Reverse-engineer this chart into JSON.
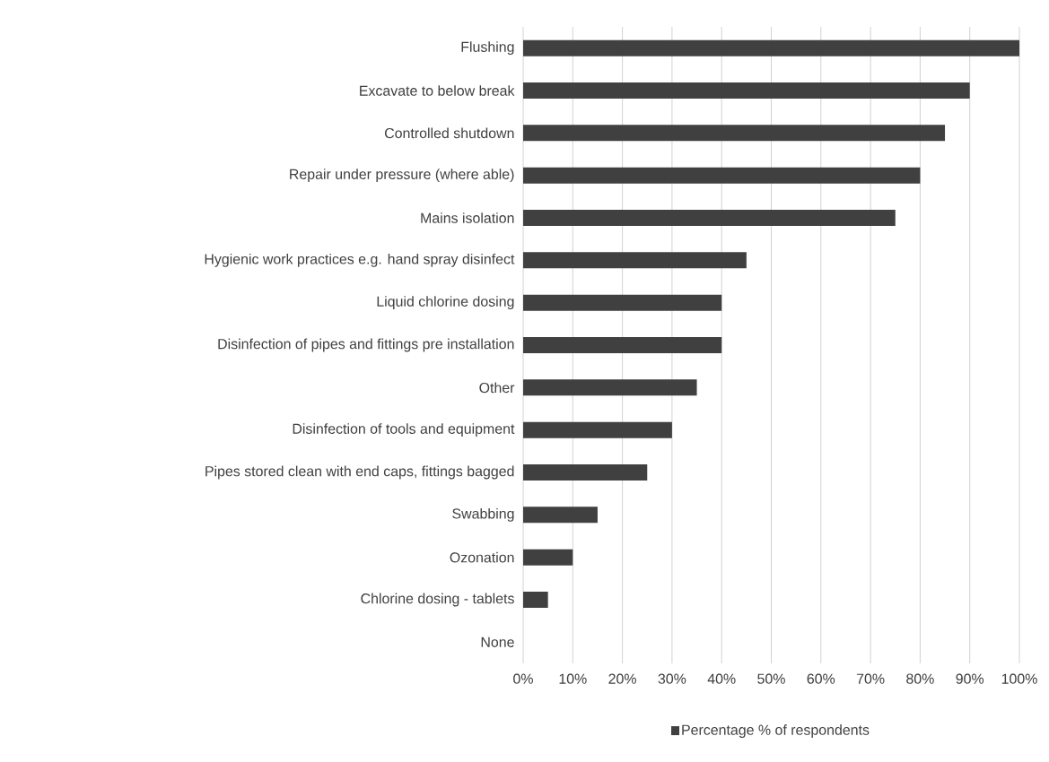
{
  "chart_data": {
    "type": "bar",
    "orientation": "horizontal",
    "categories": [
      "Flushing",
      "Excavate to below break",
      "Controlled shutdown",
      "Repair under pressure (where able)",
      "Mains isolation",
      "Hygienic work practices e.g. hand spray disinfect",
      "Liquid chlorine dosing",
      "Disinfection of pipes and fittings pre installation",
      "Other",
      "Disinfection of tools and equipment",
      "Pipes stored clean with end caps, fittings bagged",
      "Swabbing",
      "Ozonation",
      "Chlorine dosing - tablets",
      "None"
    ],
    "series": [
      {
        "name": "Percentage % of respondents",
        "color": "#404040",
        "values": [
          100,
          90,
          85,
          80,
          75,
          45,
          40,
          40,
          35,
          30,
          25,
          15,
          10,
          5,
          0
        ]
      }
    ],
    "xlim": [
      0,
      100
    ],
    "xticks": [
      {
        "value": 0,
        "label": "0%"
      },
      {
        "value": 10,
        "label": "10%"
      },
      {
        "value": 20,
        "label": "20%"
      },
      {
        "value": 30,
        "label": "30%"
      },
      {
        "value": 40,
        "label": "40%"
      },
      {
        "value": 50,
        "label": "50%"
      },
      {
        "value": 60,
        "label": "60%"
      },
      {
        "value": 70,
        "label": "70%"
      },
      {
        "value": 80,
        "label": "80%"
      },
      {
        "value": 90,
        "label": "90%"
      },
      {
        "value": 100,
        "label": "100%"
      }
    ],
    "grid": "x",
    "legend": "bottom"
  }
}
